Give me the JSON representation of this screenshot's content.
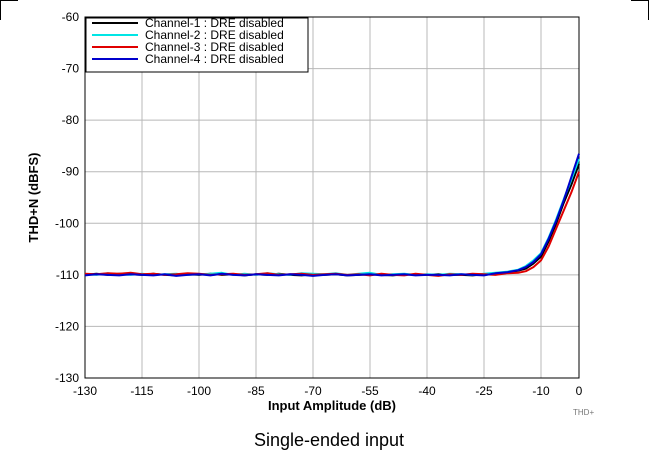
{
  "chart_data": {
    "type": "line",
    "xlabel": "Input Amplitude (dB)",
    "ylabel": "THD+N (dBFS)",
    "xlim": [
      -130,
      0
    ],
    "ylim": [
      -130,
      -60
    ],
    "xticks": [
      -130,
      -115,
      -100,
      -85,
      -70,
      -55,
      -40,
      -25,
      -10,
      0
    ],
    "yticks": [
      -60,
      -70,
      -80,
      -90,
      -100,
      -110,
      -120,
      -130
    ],
    "grid": true,
    "legend_position": "top-left",
    "caption": "Single-ended input",
    "tag": "THD+",
    "series": [
      {
        "name": "Channel-1 : DRE disabled",
        "color": "#000000",
        "x": [
          -130,
          -127,
          -124,
          -121,
          -118,
          -115,
          -112,
          -109,
          -106,
          -103,
          -100,
          -97,
          -94,
          -91,
          -88,
          -85,
          -82,
          -79,
          -76,
          -73,
          -70,
          -67,
          -64,
          -61,
          -58,
          -55,
          -52,
          -49,
          -46,
          -43,
          -40,
          -37,
          -34,
          -31,
          -28,
          -25,
          -22,
          -19,
          -16,
          -14,
          -12,
          -10,
          -8,
          -6,
          -4,
          -2,
          0
        ],
        "values": [
          -110.0,
          -109.8,
          -110.0,
          -109.8,
          -109.9,
          -110.0,
          -109.8,
          -110.0,
          -110.1,
          -109.9,
          -110.0,
          -109.8,
          -110.0,
          -109.9,
          -110.1,
          -109.9,
          -110.0,
          -109.8,
          -110.0,
          -110.1,
          -109.9,
          -110.0,
          -109.9,
          -110.1,
          -110.0,
          -109.9,
          -110.0,
          -110.1,
          -109.9,
          -110.0,
          -110.0,
          -109.9,
          -110.0,
          -110.0,
          -110.1,
          -109.9,
          -109.8,
          -109.6,
          -109.2,
          -108.8,
          -107.8,
          -106.5,
          -103.5,
          -100.0,
          -96.0,
          -92.5,
          -88.5
        ]
      },
      {
        "name": "Channel-2 : DRE disabled",
        "color": "#00e5e5",
        "x": [
          -130,
          -127,
          -124,
          -121,
          -118,
          -115,
          -112,
          -109,
          -106,
          -103,
          -100,
          -97,
          -94,
          -91,
          -88,
          -85,
          -82,
          -79,
          -76,
          -73,
          -70,
          -67,
          -64,
          -61,
          -58,
          -55,
          -52,
          -49,
          -46,
          -43,
          -40,
          -37,
          -34,
          -31,
          -28,
          -25,
          -22,
          -19,
          -16,
          -14,
          -12,
          -10,
          -8,
          -6,
          -4,
          -2,
          0
        ],
        "values": [
          -109.9,
          -110.0,
          -109.7,
          -109.9,
          -110.0,
          -109.8,
          -110.0,
          -109.9,
          -109.8,
          -110.0,
          -109.9,
          -109.8,
          -109.6,
          -110.0,
          -109.8,
          -110.0,
          -109.7,
          -109.9,
          -110.0,
          -109.7,
          -109.8,
          -109.9,
          -109.7,
          -110.0,
          -109.8,
          -109.6,
          -110.0,
          -109.9,
          -109.8,
          -110.0,
          -109.9,
          -110.0,
          -109.8,
          -109.9,
          -110.0,
          -109.8,
          -109.6,
          -109.4,
          -109.0,
          -108.3,
          -107.2,
          -105.8,
          -102.8,
          -99.2,
          -95.3,
          -91.5,
          -87.5
        ]
      },
      {
        "name": "Channel-3 : DRE disabled",
        "color": "#e00000",
        "x": [
          -130,
          -127,
          -124,
          -121,
          -118,
          -115,
          -112,
          -109,
          -106,
          -103,
          -100,
          -97,
          -94,
          -91,
          -88,
          -85,
          -82,
          -79,
          -76,
          -73,
          -70,
          -67,
          -64,
          -61,
          -58,
          -55,
          -52,
          -49,
          -46,
          -43,
          -40,
          -37,
          -34,
          -31,
          -28,
          -25,
          -22,
          -19,
          -16,
          -14,
          -12,
          -10,
          -8,
          -6,
          -4,
          -2,
          0
        ],
        "values": [
          -109.8,
          -109.9,
          -109.7,
          -109.8,
          -109.6,
          -109.9,
          -109.8,
          -110.0,
          -109.9,
          -109.7,
          -109.8,
          -110.0,
          -109.9,
          -109.8,
          -110.0,
          -109.9,
          -109.7,
          -110.0,
          -109.9,
          -109.8,
          -110.0,
          -109.9,
          -109.8,
          -110.0,
          -109.9,
          -110.1,
          -109.8,
          -110.0,
          -110.1,
          -109.8,
          -110.0,
          -110.2,
          -109.9,
          -110.0,
          -109.8,
          -109.9,
          -110.0,
          -109.7,
          -109.6,
          -109.3,
          -108.5,
          -107.2,
          -104.5,
          -101.0,
          -97.5,
          -94.0,
          -90.0
        ]
      },
      {
        "name": "Channel-4 : DRE disabled",
        "color": "#0000cc",
        "x": [
          -130,
          -127,
          -124,
          -121,
          -118,
          -115,
          -112,
          -109,
          -106,
          -103,
          -100,
          -97,
          -94,
          -91,
          -88,
          -85,
          -82,
          -79,
          -76,
          -73,
          -70,
          -67,
          -64,
          -61,
          -58,
          -55,
          -52,
          -49,
          -46,
          -43,
          -40,
          -37,
          -34,
          -31,
          -28,
          -25,
          -22,
          -19,
          -16,
          -14,
          -12,
          -10,
          -8,
          -6,
          -4,
          -2,
          0
        ],
        "values": [
          -110.1,
          -109.9,
          -110.0,
          -110.1,
          -109.9,
          -110.0,
          -110.1,
          -109.9,
          -110.2,
          -110.0,
          -109.9,
          -110.1,
          -109.8,
          -110.0,
          -110.1,
          -109.9,
          -110.0,
          -110.1,
          -109.9,
          -110.0,
          -110.2,
          -110.0,
          -109.9,
          -110.1,
          -110.0,
          -109.9,
          -110.1,
          -110.0,
          -109.9,
          -110.1,
          -110.0,
          -110.0,
          -110.1,
          -109.9,
          -110.0,
          -110.1,
          -109.7,
          -109.5,
          -109.1,
          -108.5,
          -107.5,
          -106.0,
          -103.0,
          -99.5,
          -95.5,
          -91.0,
          -86.5
        ]
      }
    ]
  }
}
